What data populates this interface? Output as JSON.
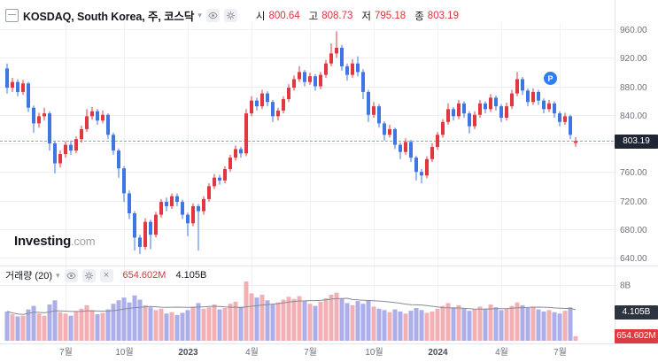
{
  "header": {
    "title": "KOSDAQ, South Korea, 주, 코스닥",
    "ohlc": [
      {
        "label": "시",
        "value": "800.64"
      },
      {
        "label": "고",
        "value": "808.73"
      },
      {
        "label": "저",
        "value": "795.18"
      },
      {
        "label": "종",
        "value": "803.19"
      }
    ]
  },
  "volume_pane": {
    "title": "거래량 (20)",
    "current": "654.602M",
    "ma": "4.105B",
    "axis_label": "8B"
  },
  "price_axis": {
    "current_tag": "803.19",
    "ticks": [
      {
        "price": 960,
        "label": "960.00"
      },
      {
        "price": 920,
        "label": "920.00"
      },
      {
        "price": 880,
        "label": "880.00"
      },
      {
        "price": 840,
        "label": "840.00"
      },
      {
        "price": 800,
        "label": null
      },
      {
        "price": 760,
        "label": "760.00"
      },
      {
        "price": 720,
        "label": "720.00"
      },
      {
        "price": 680,
        "label": "680.00"
      },
      {
        "price": 640,
        "label": "640.00"
      }
    ]
  },
  "x_axis": {
    "ticks": [
      {
        "label": "7월",
        "index": 11,
        "year": false
      },
      {
        "label": "10월",
        "index": 22,
        "year": false
      },
      {
        "label": "2023",
        "index": 34,
        "year": true
      },
      {
        "label": "4월",
        "index": 46,
        "year": false
      },
      {
        "label": "7월",
        "index": 57,
        "year": false
      },
      {
        "label": "10월",
        "index": 69,
        "year": false
      },
      {
        "label": "2024",
        "index": 81,
        "year": true
      },
      {
        "label": "4월",
        "index": 93,
        "year": false
      },
      {
        "label": "7월",
        "index": 104,
        "year": false
      }
    ]
  },
  "logo": {
    "name": "Investing",
    "tld": ".com"
  },
  "marker": {
    "label": "P"
  },
  "icons": {
    "caret": "▾",
    "close": "×"
  },
  "colors": {
    "up": "#e03740",
    "down": "#3f76e4",
    "vol_up": "#f2b0b5",
    "vol_down": "#abaee9",
    "grid": "#edeff2",
    "grid_v": "#f1f2f4",
    "axis_text": "#6d727b",
    "axis_text_year": "#4a4f58",
    "price_line": "#7ea6f0",
    "price_tag_bg": "#202634",
    "vol_ma_tag_bg": "#2e3340",
    "vol_cur_tag_bg": "#dd3a42",
    "marker": "#2f7df6",
    "ma_line": "#878c95",
    "divider": "#e2e5e9"
  },
  "chart_data": {
    "type": "candlestick+volume",
    "symbol": "KOSDAQ",
    "interval": "주 (weekly)",
    "current": {
      "open": 800.64,
      "high": 808.73,
      "low": 795.18,
      "close": 803.19,
      "volume": "654.602M",
      "volume_ma20": "4.105B"
    },
    "price_range": [
      640,
      960
    ],
    "volume_axis_max_b": 8,
    "candles_ohlc": [
      [
        905,
        912,
        870,
        878
      ],
      [
        878,
        892,
        872,
        886
      ],
      [
        886,
        890,
        866,
        872
      ],
      [
        872,
        889,
        868,
        884
      ],
      [
        884,
        886,
        844,
        850
      ],
      [
        850,
        853,
        815,
        828
      ],
      [
        828,
        843,
        822,
        838
      ],
      [
        838,
        850,
        832,
        842
      ],
      [
        842,
        845,
        790,
        800
      ],
      [
        800,
        803,
        758,
        772
      ],
      [
        772,
        790,
        766,
        785
      ],
      [
        785,
        803,
        780,
        798
      ],
      [
        798,
        804,
        784,
        790
      ],
      [
        790,
        810,
        786,
        806
      ],
      [
        806,
        825,
        801,
        820
      ],
      [
        820,
        848,
        816,
        838
      ],
      [
        838,
        851,
        833,
        845
      ],
      [
        845,
        848,
        826,
        832
      ],
      [
        832,
        846,
        828,
        840
      ],
      [
        840,
        842,
        806,
        812
      ],
      [
        812,
        815,
        784,
        790
      ],
      [
        790,
        793,
        752,
        765
      ],
      [
        765,
        768,
        718,
        730
      ],
      [
        730,
        734,
        694,
        702
      ],
      [
        702,
        705,
        650,
        668
      ],
      [
        668,
        672,
        645,
        655
      ],
      [
        655,
        695,
        651,
        690
      ],
      [
        690,
        693,
        652,
        672
      ],
      [
        672,
        704,
        668,
        700
      ],
      [
        700,
        722,
        696,
        718
      ],
      [
        718,
        724,
        705,
        712
      ],
      [
        712,
        730,
        708,
        726
      ],
      [
        726,
        730,
        712,
        718
      ],
      [
        718,
        721,
        694,
        700
      ],
      [
        700,
        703,
        670,
        688
      ],
      [
        688,
        716,
        684,
        712
      ],
      [
        712,
        715,
        650,
        705
      ],
      [
        705,
        726,
        700,
        722
      ],
      [
        722,
        744,
        718,
        740
      ],
      [
        740,
        757,
        736,
        752
      ],
      [
        752,
        756,
        742,
        748
      ],
      [
        748,
        768,
        744,
        764
      ],
      [
        764,
        784,
        760,
        780
      ],
      [
        780,
        797,
        776,
        792
      ],
      [
        792,
        795,
        780,
        786
      ],
      [
        786,
        848,
        782,
        842
      ],
      [
        842,
        866,
        838,
        860
      ],
      [
        860,
        864,
        846,
        852
      ],
      [
        852,
        875,
        848,
        870
      ],
      [
        870,
        873,
        852,
        858
      ],
      [
        858,
        861,
        830,
        838
      ],
      [
        838,
        850,
        832,
        846
      ],
      [
        846,
        866,
        842,
        862
      ],
      [
        862,
        883,
        858,
        878
      ],
      [
        878,
        895,
        874,
        890
      ],
      [
        890,
        908,
        886,
        900
      ],
      [
        900,
        903,
        880,
        886
      ],
      [
        886,
        899,
        882,
        894
      ],
      [
        894,
        897,
        874,
        880
      ],
      [
        880,
        900,
        876,
        896
      ],
      [
        896,
        917,
        892,
        912
      ],
      [
        912,
        940,
        908,
        926
      ],
      [
        926,
        957,
        920,
        934
      ],
      [
        934,
        938,
        902,
        908
      ],
      [
        908,
        912,
        888,
        896
      ],
      [
        896,
        918,
        892,
        912
      ],
      [
        912,
        922,
        894,
        900
      ],
      [
        900,
        904,
        862,
        872
      ],
      [
        872,
        875,
        830,
        840
      ],
      [
        840,
        858,
        836,
        852
      ],
      [
        852,
        855,
        822,
        828
      ],
      [
        828,
        831,
        804,
        812
      ],
      [
        812,
        826,
        808,
        820
      ],
      [
        820,
        822,
        792,
        798
      ],
      [
        798,
        801,
        778,
        788
      ],
      [
        788,
        807,
        784,
        802
      ],
      [
        802,
        805,
        774,
        780
      ],
      [
        780,
        783,
        748,
        760
      ],
      [
        760,
        764,
        744,
        755
      ],
      [
        755,
        782,
        751,
        778
      ],
      [
        778,
        800,
        774,
        795
      ],
      [
        795,
        816,
        791,
        812
      ],
      [
        812,
        834,
        808,
        830
      ],
      [
        830,
        856,
        826,
        848
      ],
      [
        848,
        851,
        832,
        838
      ],
      [
        838,
        861,
        834,
        856
      ],
      [
        856,
        859,
        836,
        842
      ],
      [
        842,
        845,
        814,
        824
      ],
      [
        824,
        845,
        820,
        840
      ],
      [
        840,
        861,
        836,
        856
      ],
      [
        856,
        859,
        842,
        848
      ],
      [
        848,
        869,
        844,
        864
      ],
      [
        864,
        867,
        846,
        852
      ],
      [
        852,
        855,
        830,
        836
      ],
      [
        836,
        857,
        832,
        852
      ],
      [
        852,
        875,
        848,
        870
      ],
      [
        870,
        900,
        866,
        890
      ],
      [
        890,
        893,
        868,
        874
      ],
      [
        874,
        877,
        852,
        858
      ],
      [
        858,
        877,
        854,
        872
      ],
      [
        872,
        875,
        854,
        860
      ],
      [
        860,
        863,
        842,
        848
      ],
      [
        848,
        861,
        844,
        856
      ],
      [
        856,
        859,
        836,
        842
      ],
      [
        842,
        845,
        824,
        830
      ],
      [
        830,
        843,
        826,
        838
      ],
      [
        838,
        840,
        806,
        812
      ],
      [
        800.64,
        808.73,
        795.18,
        803.19
      ]
    ],
    "volumes_b": [
      4.2,
      3.8,
      3.5,
      3.6,
      4.5,
      5.0,
      3.9,
      3.6,
      5.2,
      5.8,
      4.1,
      3.9,
      3.6,
      4.2,
      4.6,
      5.1,
      4.4,
      3.8,
      4.0,
      4.5,
      5.3,
      5.8,
      6.2,
      5.5,
      6.5,
      5.9,
      5.1,
      4.8,
      4.4,
      4.6,
      3.9,
      4.1,
      3.7,
      4.0,
      4.4,
      4.9,
      5.4,
      4.6,
      4.8,
      5.2,
      4.5,
      4.7,
      5.3,
      5.6,
      4.9,
      8.5,
      6.8,
      6.2,
      6.6,
      5.8,
      5.2,
      5.5,
      5.9,
      6.3,
      6.0,
      6.4,
      5.7,
      5.3,
      5.0,
      5.6,
      6.1,
      6.6,
      6.9,
      6.0,
      5.4,
      5.1,
      5.7,
      5.3,
      5.8,
      4.9,
      4.6,
      4.4,
      4.1,
      4.5,
      4.2,
      3.9,
      4.3,
      4.7,
      4.4,
      4.0,
      4.2,
      4.6,
      5.0,
      5.4,
      4.8,
      5.1,
      4.7,
      4.3,
      4.5,
      4.9,
      4.6,
      5.2,
      4.8,
      4.4,
      4.6,
      5.0,
      5.5,
      5.1,
      4.7,
      4.9,
      4.5,
      4.2,
      4.4,
      4.1,
      3.9,
      4.3,
      4.8,
      0.654
    ]
  }
}
